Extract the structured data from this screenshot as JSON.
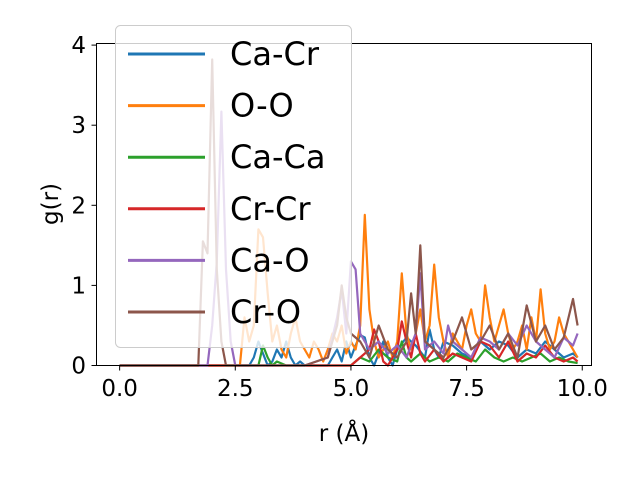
{
  "chart_data": {
    "type": "line",
    "title": "",
    "xlabel": "r (Å)",
    "ylabel": "g(r)",
    "xlim": [
      -0.5,
      10.2
    ],
    "ylim": [
      0,
      4.02
    ],
    "xticks": [
      0.0,
      2.5,
      5.0,
      7.5,
      10.0
    ],
    "xtick_labels": [
      "0.0",
      "2.5",
      "5.0",
      "7.5",
      "10.0"
    ],
    "yticks": [
      0,
      1,
      2,
      3,
      4
    ],
    "ytick_labels": [
      "0",
      "1",
      "2",
      "3",
      "4"
    ],
    "grid": false,
    "legend_position": "upper-left",
    "series": [
      {
        "name": "Ca-Cr",
        "color": "#1f77b4",
        "x": [
          0.0,
          2.8,
          2.9,
          3.0,
          3.1,
          3.2,
          3.3,
          3.4,
          3.5,
          3.6,
          3.7,
          3.8,
          3.9,
          4.0,
          4.5,
          4.6,
          4.7,
          4.8,
          4.9,
          5.0,
          5.1,
          5.2,
          5.3,
          5.4,
          5.5,
          5.6,
          5.7,
          5.8,
          5.9,
          6.0,
          6.2,
          6.4,
          6.6,
          6.7,
          6.8,
          6.9,
          7.0,
          7.2,
          7.4,
          7.6,
          7.8,
          8.0,
          8.2,
          8.4,
          8.6,
          8.8,
          9.0,
          9.2,
          9.4,
          9.6,
          9.8,
          9.9
        ],
        "y": [
          0,
          0,
          0.1,
          0.3,
          0.15,
          0,
          0.05,
          0.2,
          0.1,
          0.3,
          0.1,
          0,
          0.05,
          0,
          0,
          0.1,
          0.2,
          0.05,
          0.3,
          0.1,
          0.25,
          0.38,
          0.35,
          0.1,
          0,
          0.15,
          0.3,
          0.1,
          0,
          0.2,
          0.35,
          0.25,
          0.1,
          0.45,
          0.2,
          0.1,
          0.3,
          0.25,
          0.15,
          0.1,
          0.3,
          0.2,
          0.3,
          0.25,
          0.1,
          0.2,
          0.15,
          0.3,
          0.2,
          0.1,
          0.15,
          0.1
        ]
      },
      {
        "name": "O-O",
        "color": "#ff7f0e",
        "x": [
          0.0,
          2.6,
          2.7,
          2.8,
          2.9,
          3.0,
          3.1,
          3.2,
          3.3,
          3.4,
          3.5,
          3.6,
          3.7,
          3.8,
          3.9,
          4.0,
          4.1,
          4.2,
          4.3,
          4.4,
          4.5,
          4.6,
          4.7,
          4.8,
          4.9,
          5.0,
          5.1,
          5.2,
          5.3,
          5.4,
          5.5,
          5.6,
          5.7,
          5.8,
          5.9,
          6.0,
          6.1,
          6.2,
          6.3,
          6.4,
          6.5,
          6.6,
          6.7,
          6.8,
          6.9,
          7.0,
          7.1,
          7.2,
          7.3,
          7.4,
          7.5,
          7.6,
          7.7,
          7.8,
          7.9,
          8.0,
          8.1,
          8.2,
          8.3,
          8.4,
          8.5,
          8.6,
          8.7,
          8.8,
          8.9,
          9.0,
          9.1,
          9.2,
          9.3,
          9.4,
          9.5,
          9.6,
          9.7,
          9.8,
          9.9
        ],
        "y": [
          0,
          0,
          0.6,
          0.3,
          0.5,
          1.7,
          1.6,
          0.9,
          0.3,
          0.5,
          0.2,
          0.1,
          0.4,
          0.6,
          0.3,
          0.2,
          0.1,
          0.3,
          0.2,
          0.05,
          0.2,
          0.4,
          0.3,
          0.5,
          0.15,
          0.3,
          0.2,
          0.5,
          1.88,
          0.7,
          0.3,
          0.1,
          0.2,
          0.3,
          0.1,
          0.3,
          1.15,
          0.4,
          0.2,
          0.4,
          0.7,
          0.3,
          0.5,
          1.26,
          0.6,
          0.3,
          0.1,
          0.4,
          0.3,
          0.2,
          0.5,
          0.7,
          0.4,
          0.3,
          1.0,
          0.6,
          0.3,
          0.5,
          0.7,
          0.4,
          0.2,
          0.3,
          0.5,
          0.2,
          0.6,
          0.3,
          0.95,
          0.4,
          0.2,
          0.3,
          0.6,
          0.4,
          0.3,
          0.2,
          0.1
        ]
      },
      {
        "name": "Ca-Ca",
        "color": "#2ca02c",
        "x": [
          0.0,
          3.0,
          3.1,
          3.2,
          3.3,
          3.4,
          3.6,
          3.8,
          4.0,
          5.0,
          5.2,
          5.4,
          5.6,
          5.8,
          6.0,
          6.1,
          6.2,
          6.3,
          6.5,
          6.7,
          6.9,
          7.1,
          7.3,
          7.5,
          7.7,
          7.9,
          8.1,
          8.3,
          8.5,
          8.7,
          8.9,
          9.1,
          9.3,
          9.5,
          9.7,
          9.9
        ],
        "y": [
          0,
          0,
          0.25,
          0.1,
          0,
          0.05,
          0,
          0,
          0,
          0,
          0.1,
          0.05,
          0.2,
          0.1,
          0.05,
          0.3,
          0.1,
          0.05,
          0.15,
          0.05,
          0.1,
          0.05,
          0.15,
          0.1,
          0.05,
          0.2,
          0.1,
          0.05,
          0.1,
          0.05,
          0.1,
          0.15,
          0.05,
          0.1,
          0.05,
          0.03
        ]
      },
      {
        "name": "Cr-Cr",
        "color": "#d62728",
        "x": [
          0.0,
          5.0,
          5.2,
          5.4,
          5.5,
          5.6,
          5.7,
          5.8,
          5.9,
          6.0,
          6.1,
          6.2,
          6.3,
          6.4,
          6.5,
          6.6,
          6.8,
          7.0,
          7.2,
          7.4,
          7.6,
          7.8,
          8.0,
          8.2,
          8.4,
          8.6,
          8.8,
          9.0,
          9.2,
          9.4,
          9.6,
          9.8,
          9.9
        ],
        "y": [
          0,
          0,
          0.1,
          0.2,
          0.45,
          0.3,
          0.05,
          0,
          0.1,
          0.2,
          0.55,
          0.3,
          0.1,
          0.4,
          0.15,
          0.05,
          0.2,
          0.05,
          0.15,
          0.1,
          0.05,
          0.3,
          0.25,
          0.1,
          0.3,
          0.05,
          0.15,
          0.1,
          0.25,
          0.1,
          0.05,
          0.1,
          0.05
        ]
      },
      {
        "name": "Ca-O",
        "color": "#9467bd",
        "x": [
          0.0,
          1.9,
          2.0,
          2.1,
          2.2,
          2.3,
          2.4,
          2.5,
          3.0,
          3.5,
          4.0,
          4.5,
          4.7,
          4.8,
          4.9,
          5.0,
          5.1,
          5.2,
          5.4,
          5.6,
          5.8,
          6.0,
          6.2,
          6.4,
          6.5,
          6.6,
          6.8,
          7.0,
          7.1,
          7.2,
          7.4,
          7.6,
          7.8,
          8.0,
          8.2,
          8.4,
          8.6,
          8.8,
          9.0,
          9.2,
          9.4,
          9.6,
          9.8,
          9.9
        ],
        "y": [
          0,
          0,
          0.5,
          1.3,
          3.17,
          1.2,
          0.3,
          0,
          0,
          0,
          0,
          0.1,
          0.6,
          0.95,
          0.4,
          1.3,
          1.2,
          0.4,
          0.2,
          0.3,
          0.15,
          0.25,
          0.1,
          0.4,
          1.15,
          0.2,
          0.3,
          0.15,
          0.5,
          0.3,
          0.2,
          0.1,
          0.35,
          0.3,
          0.2,
          0.4,
          0.25,
          0.5,
          0.3,
          0.2,
          0.1,
          0.35,
          0.25,
          0.4
        ]
      },
      {
        "name": "Cr-O",
        "color": "#8c564b",
        "x": [
          0.0,
          1.7,
          1.8,
          1.9,
          2.0,
          2.1,
          2.2,
          2.3,
          2.5,
          3.0,
          3.5,
          4.0,
          4.5,
          4.6,
          4.7,
          4.8,
          4.9,
          5.0,
          5.2,
          5.4,
          5.6,
          5.8,
          6.0,
          6.2,
          6.3,
          6.4,
          6.5,
          6.6,
          6.8,
          7.0,
          7.2,
          7.4,
          7.6,
          7.8,
          8.0,
          8.2,
          8.4,
          8.6,
          8.8,
          9.0,
          9.2,
          9.4,
          9.6,
          9.8,
          9.9
        ],
        "y": [
          0,
          0,
          1.55,
          1.4,
          3.82,
          1.2,
          0.3,
          0,
          0,
          0,
          0,
          0,
          0.1,
          0.3,
          0.5,
          1.0,
          0.6,
          0.4,
          0.3,
          0.1,
          0.5,
          0.2,
          0.1,
          0.3,
          0.9,
          0.4,
          1.5,
          0.3,
          0.2,
          0.1,
          0.3,
          0.6,
          0.2,
          0.3,
          0.5,
          0.2,
          0.4,
          0.1,
          0.75,
          0.3,
          0.5,
          0.2,
          0.35,
          0.83,
          0.5
        ]
      }
    ]
  }
}
